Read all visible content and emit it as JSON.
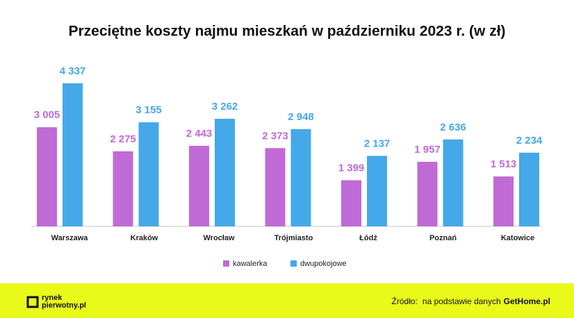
{
  "chart_data": {
    "type": "bar",
    "title": "Przeciętne koszty najmu mieszkań w październiku 2023 r. (w zł)",
    "categories": [
      "Warszawa",
      "Kraków",
      "Wrocław",
      "Trójmiasto",
      "Łódź",
      "Poznań",
      "Katowice"
    ],
    "series": [
      {
        "name": "kawalerka",
        "color": "#c06ad6",
        "values": [
          3005,
          2275,
          2443,
          2373,
          1399,
          1957,
          1513
        ],
        "value_labels": [
          "3 005",
          "2 275",
          "2 443",
          "2 373",
          "1 399",
          "1 957",
          "1 513"
        ]
      },
      {
        "name": "dwupokojowe",
        "color": "#45a8e8",
        "values": [
          4337,
          3155,
          3262,
          2948,
          2137,
          2636,
          2234
        ],
        "value_labels": [
          "4 337",
          "3 155",
          "3 262",
          "2 948",
          "2 137",
          "2 636",
          "2 234"
        ]
      }
    ]
  },
  "footer": {
    "logo_top": "rynek",
    "logo_bottom": "pierwotny.pl",
    "source_prefix": "Źródło:",
    "source_text": "na podstawie danych",
    "source_link": "GetHome.pl"
  }
}
